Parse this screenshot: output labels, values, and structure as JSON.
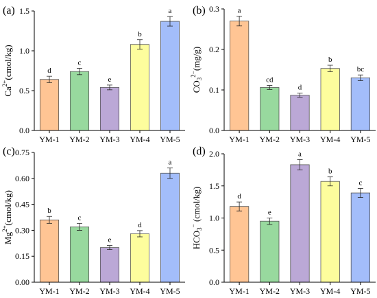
{
  "chart_data": [
    {
      "type": "bar",
      "panel_label": "(a)",
      "ylabel": "Ca2+(cmol/kg)",
      "ylabel_parts": {
        "pre": "Ca",
        "sup": "2+",
        "sub": "",
        "post": "(cmol/kg)"
      },
      "ylim": [
        0,
        1.5
      ],
      "yticks": [
        "0.0",
        "0.5",
        "1.0",
        "1.5"
      ],
      "yticks_values": [
        0,
        0.5,
        1.0,
        1.5
      ],
      "categories": [
        "YM-1",
        "YM-2",
        "YM-3",
        "YM-4",
        "YM-5"
      ],
      "values": [
        0.64,
        0.74,
        0.54,
        1.08,
        1.37
      ],
      "errors": [
        0.04,
        0.04,
        0.03,
        0.06,
        0.06
      ],
      "letters": [
        "d",
        "c",
        "e",
        "b",
        "a"
      ]
    },
    {
      "type": "bar",
      "panel_label": "(b)",
      "ylabel": "CO32-(mg/g)",
      "ylabel_parts": {
        "pre": "CO",
        "sub": "3",
        "sup": "2−",
        "post": "(mg/g)"
      },
      "ylim": [
        0,
        0.3
      ],
      "yticks": [
        "0.0",
        "0.1",
        "0.2",
        "0.3"
      ],
      "yticks_values": [
        0,
        0.1,
        0.2,
        0.3
      ],
      "categories": [
        "YM-1",
        "YM-2",
        "YM-3",
        "YM-4",
        "YM-5"
      ],
      "values": [
        0.27,
        0.106,
        0.087,
        0.153,
        0.13
      ],
      "errors": [
        0.012,
        0.005,
        0.005,
        0.008,
        0.007
      ],
      "letters": [
        "a",
        "cd",
        "d",
        "b",
        "bc"
      ]
    },
    {
      "type": "bar",
      "panel_label": "(c)",
      "ylabel": "Mg2+(cmol/kg)",
      "ylabel_parts": {
        "pre": "Mg",
        "sup": "2+",
        "sub": "",
        "post": "(cmol/kg)"
      },
      "ylim": [
        0,
        0.75
      ],
      "yticks": [
        "0.00",
        "0.15",
        "0.30",
        "0.45",
        "0.60",
        "0.75"
      ],
      "yticks_values": [
        0,
        0.15,
        0.3,
        0.45,
        0.6,
        0.75
      ],
      "categories": [
        "YM-1",
        "YM-2",
        "YM-3",
        "YM-4",
        "YM-5"
      ],
      "values": [
        0.36,
        0.32,
        0.2,
        0.28,
        0.63
      ],
      "errors": [
        0.02,
        0.02,
        0.012,
        0.018,
        0.03
      ],
      "letters": [
        "b",
        "c",
        "e",
        "d",
        "a"
      ]
    },
    {
      "type": "bar",
      "panel_label": "(d)",
      "ylabel": "HCO3- (cmol/kg)",
      "ylabel_parts": {
        "pre": "HCO",
        "sub": "3",
        "sup": "−",
        "post": " (cmol/kg)"
      },
      "ylim": [
        0,
        2.0
      ],
      "yticks": [
        "0.0",
        "0.5",
        "1.0",
        "1.5",
        "2.0"
      ],
      "yticks_values": [
        0,
        0.5,
        1.0,
        1.5,
        2.0
      ],
      "categories": [
        "YM-1",
        "YM-2",
        "YM-3",
        "YM-4",
        "YM-5"
      ],
      "values": [
        1.18,
        0.95,
        1.83,
        1.57,
        1.39
      ],
      "errors": [
        0.07,
        0.05,
        0.08,
        0.07,
        0.07
      ],
      "letters": [
        "d",
        "e",
        "a",
        "b",
        "c"
      ]
    }
  ],
  "colors": {
    "bars": [
      "#FFC594",
      "#98D99E",
      "#BBA8D6",
      "#FDFD9D",
      "#A3BDFA"
    ],
    "edge": "#555555",
    "axis": "#000000"
  }
}
